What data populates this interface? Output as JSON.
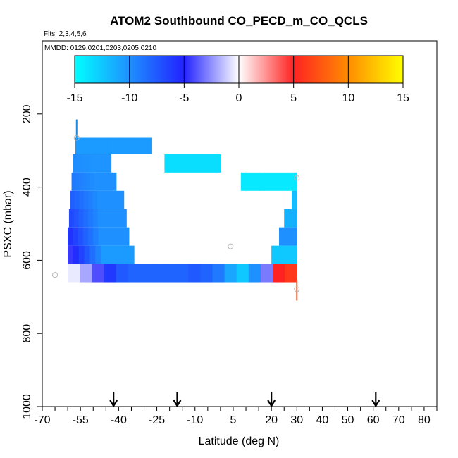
{
  "chart_data": {
    "type": "heatmap",
    "title": "ATOM2 Southbound CO_PECD_m_CO_QCLS",
    "subtitle_flights": "Flts: 2,3,4,5,6",
    "subtitle_dates": "MMDD: 0129,0201,0203,0205,0210",
    "xlabel": "Latitude (deg N)",
    "ylabel": "PSXC (mbar)",
    "xlim": [
      -70,
      85
    ],
    "ylim": [
      1000,
      0
    ],
    "x_ticks": [
      "-70",
      "-55",
      "-40",
      "-25",
      "-10",
      "5",
      "20",
      "30",
      "40",
      "50",
      "60",
      "70",
      "80"
    ],
    "x_tick_values": [
      -70,
      -55,
      -40,
      -25,
      -10,
      5,
      20,
      30,
      40,
      50,
      60,
      70,
      80
    ],
    "x_minor_step": 5,
    "y_ticks": [
      "200",
      "400",
      "600",
      "800",
      "1000"
    ],
    "y_tick_values": [
      200,
      400,
      600,
      800,
      1000
    ],
    "colorbar": {
      "ticks": [
        "-15",
        "-10",
        "-5",
        "0",
        "5",
        "10",
        "15"
      ],
      "tick_values": [
        -15,
        -10,
        -5,
        0,
        5,
        10,
        15
      ],
      "range": [
        -15,
        15
      ]
    },
    "arrows_lat": [
      -42,
      -17,
      20,
      61
    ],
    "cells": [
      {
        "lat0": -57,
        "lat1": -27,
        "p0": 265,
        "p1": 310,
        "values": [
          -10.5,
          -10.5
        ]
      },
      {
        "lat0": -58,
        "lat1": -43,
        "p0": 310,
        "p1": 360,
        "values": [
          -9.8,
          -10.2
        ]
      },
      {
        "lat0": -22,
        "lat1": 0,
        "p0": 310,
        "p1": 360,
        "values": [
          -13.5,
          -13.5
        ]
      },
      {
        "lat0": -58.5,
        "lat1": -41,
        "p0": 360,
        "p1": 410,
        "values": [
          -9,
          -10
        ]
      },
      {
        "lat0": 8,
        "lat1": 30,
        "p0": 360,
        "p1": 410,
        "values": [
          -14,
          -14
        ]
      },
      {
        "lat0": -59,
        "lat1": -38,
        "p0": 410,
        "p1": 460,
        "values": [
          -7.8,
          -10
        ]
      },
      {
        "lat0": 28,
        "lat1": 30,
        "p0": 410,
        "p1": 460,
        "values": [
          -12,
          -12
        ]
      },
      {
        "lat0": -59.5,
        "lat1": -37,
        "p0": 460,
        "p1": 510,
        "values": [
          -6.8,
          -10
        ]
      },
      {
        "lat0": 25,
        "lat1": 30,
        "p0": 460,
        "p1": 510,
        "values": [
          -11.5,
          -11.5
        ]
      },
      {
        "lat0": -60,
        "lat1": -36,
        "p0": 510,
        "p1": 560,
        "values": [
          -5.8,
          -10
        ]
      },
      {
        "lat0": 23,
        "lat1": 30,
        "p0": 510,
        "p1": 560,
        "values": [
          -10,
          -10
        ]
      },
      {
        "lat0": -60,
        "lat1": -34,
        "p0": 560,
        "p1": 610,
        "values": [
          -4.5,
          -10.5
        ]
      },
      {
        "lat0": 20,
        "lat1": 30,
        "p0": 560,
        "p1": 610,
        "values": [
          -12.5,
          -12.5
        ]
      },
      {
        "lat0": -60,
        "lat1": 30,
        "p0": 610,
        "p1": 660,
        "values": [
          -0.5,
          -2,
          -4,
          -6,
          -7.5,
          -8,
          -8,
          -8,
          -8,
          -8,
          -7.5,
          -8,
          -9,
          -11,
          -12.5,
          -10,
          -3,
          5,
          6
        ]
      }
    ],
    "profile_lines": [
      {
        "lat": -56.5,
        "p0": 215,
        "p1": 265,
        "color": "#1e88d8"
      },
      {
        "lat": 30,
        "p0": 655,
        "p1": 710,
        "color": "#e06030"
      }
    ],
    "outlier_points": [
      {
        "lat": -65,
        "p": 640
      },
      {
        "lat": 4,
        "p": 562
      },
      {
        "lat": 30,
        "p": 375
      },
      {
        "lat": 30,
        "p": 679
      },
      {
        "lat": -56.5,
        "p": 265
      }
    ]
  }
}
